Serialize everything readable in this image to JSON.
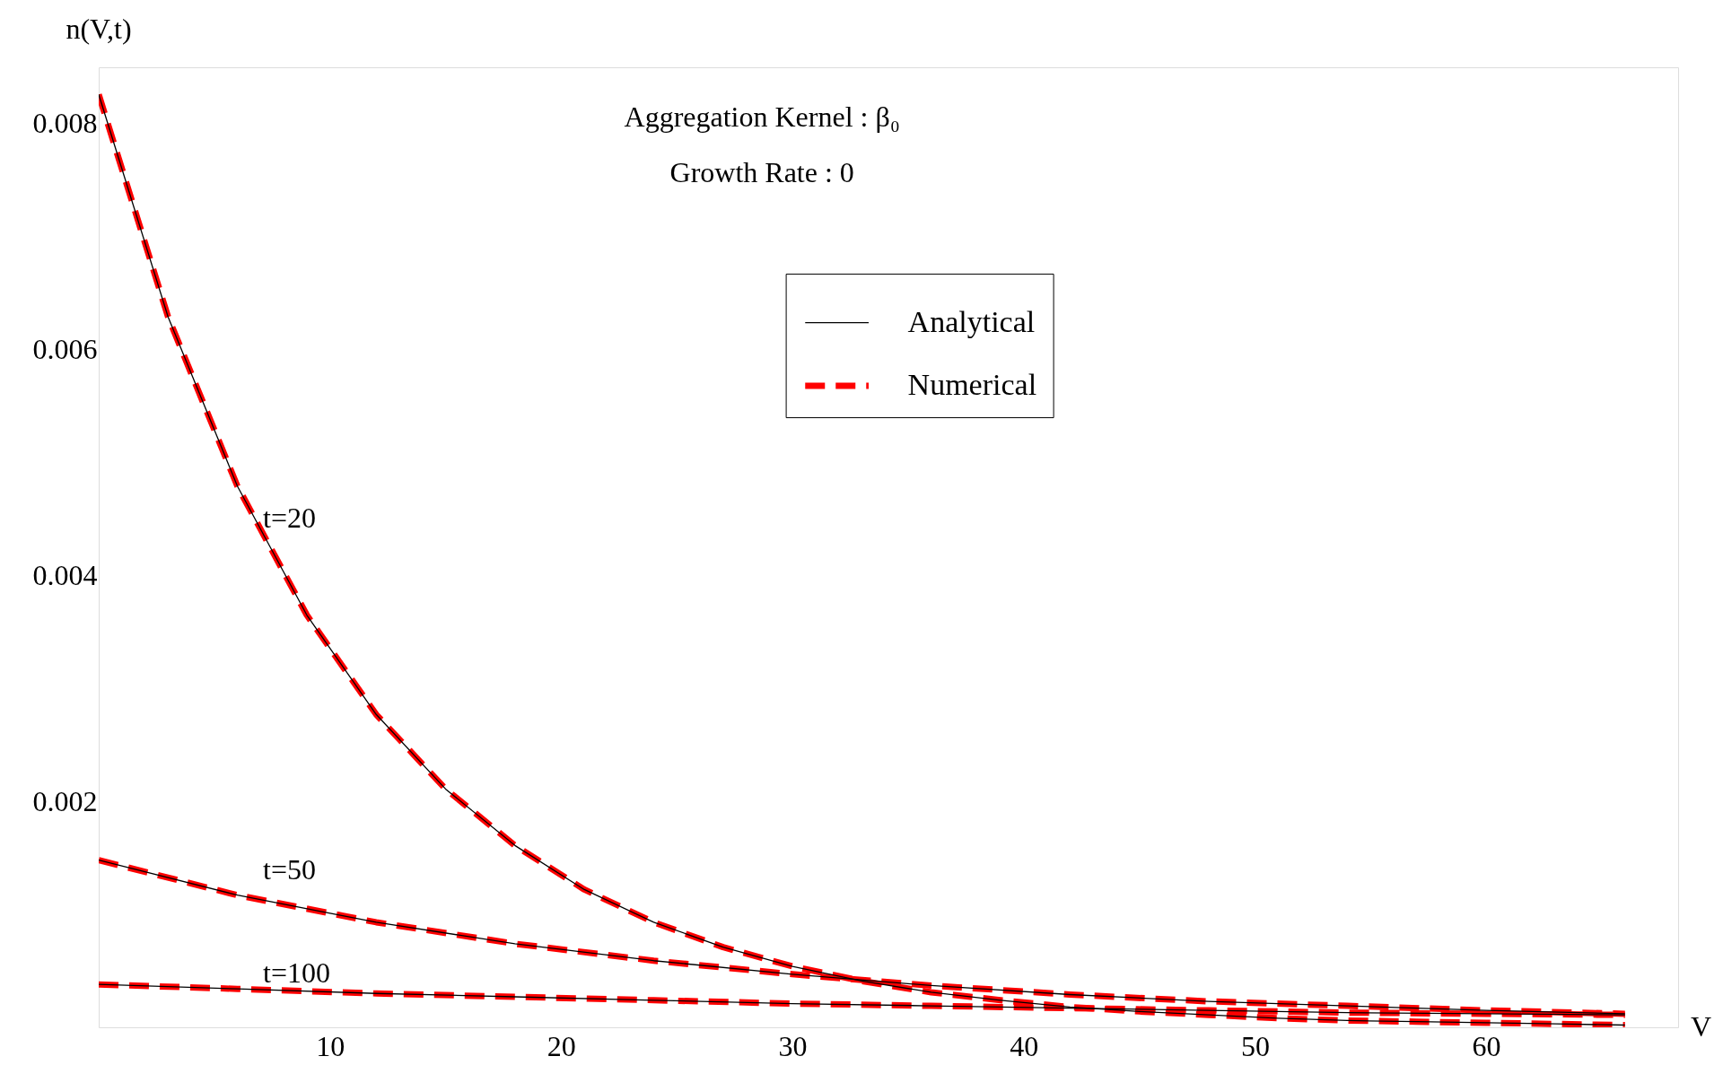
{
  "chart_data": {
    "type": "line",
    "title": "Aggregation Kernel : β₀",
    "subtitle": "Growth Rate : 0",
    "xlabel": "V",
    "ylabel": "n(V,t)",
    "xlim": [
      0,
      68.3
    ],
    "ylim": [
      0,
      0.0085
    ],
    "xticks": [
      10,
      20,
      30,
      40,
      50,
      60
    ],
    "yticks": [
      0.002,
      0.004,
      0.006,
      0.008
    ],
    "grid": false,
    "legend": "top",
    "series": [
      {
        "name": "Analytical",
        "color": "#000000",
        "line_style": "solid",
        "x": [
          0,
          3,
          6,
          9,
          12,
          15,
          18,
          21,
          24,
          27,
          30,
          33,
          36,
          39,
          42,
          45,
          48,
          51,
          54,
          57,
          60,
          63,
          66
        ],
        "values": [
          0.00826,
          0.00629,
          0.00479,
          0.00365,
          0.00277,
          0.00211,
          0.00161,
          0.00122,
          0.00093,
          0.00071,
          0.00054,
          0.00041,
          0.00031,
          0.00024,
          0.00018,
          0.00014,
          0.00011,
          8e-05,
          6e-05,
          5e-05,
          4e-05,
          3e-05,
          2e-05
        ]
      },
      {
        "name": "Numerical",
        "color": "#ff0000",
        "line_style": "dashed",
        "x": [
          0,
          3,
          6,
          9,
          12,
          15,
          18,
          21,
          24,
          27,
          30,
          33,
          36,
          39,
          42,
          45,
          48,
          51,
          54,
          57,
          60,
          63,
          66
        ],
        "values": [
          0.00826,
          0.00629,
          0.00479,
          0.00365,
          0.00277,
          0.00211,
          0.00161,
          0.00122,
          0.00093,
          0.00071,
          0.00054,
          0.00041,
          0.00031,
          0.00024,
          0.00018,
          0.00014,
          0.00011,
          8e-05,
          6e-05,
          5e-05,
          4e-05,
          3e-05,
          2e-05
        ]
      },
      {
        "color": "#ff0000",
        "line_style": "dashed",
        "x": [
          0,
          6,
          12,
          18,
          24,
          30,
          36,
          42,
          48,
          54,
          60,
          66
        ],
        "values": [
          0.00148,
          0.00117,
          0.00093,
          0.00074,
          0.00059,
          0.00047,
          0.00037,
          0.00029,
          0.00023,
          0.00019,
          0.00015,
          0.00012
        ]
      },
      {
        "color": "#ff0000",
        "line_style": "dashed",
        "x": [
          0,
          6,
          12,
          18,
          24,
          30,
          36,
          42,
          48,
          54,
          60,
          66
        ],
        "values": [
          0.00038,
          0.00034,
          0.0003,
          0.00027,
          0.00024,
          0.00021,
          0.00019,
          0.00017,
          0.00015,
          0.00013,
          0.00012,
          0.00011
        ]
      },
      {
        "color": "#000000",
        "line_style": "solid",
        "x": [
          0,
          6,
          12,
          18,
          24,
          30,
          36,
          42,
          48,
          54,
          60,
          66
        ],
        "values": [
          0.00148,
          0.00117,
          0.00093,
          0.00074,
          0.00059,
          0.00047,
          0.00037,
          0.00029,
          0.00023,
          0.00019,
          0.00015,
          0.00012
        ]
      },
      {
        "color": "#000000",
        "line_style": "solid",
        "x": [
          0,
          6,
          12,
          18,
          24,
          30,
          36,
          42,
          48,
          54,
          60,
          66
        ],
        "values": [
          0.00038,
          0.00034,
          0.0003,
          0.00027,
          0.00024,
          0.00021,
          0.00019,
          0.00017,
          0.00015,
          0.00013,
          0.00012,
          0.00011
        ]
      }
    ],
    "annotations": [
      "t=20",
      "t=50",
      "t=100"
    ]
  }
}
